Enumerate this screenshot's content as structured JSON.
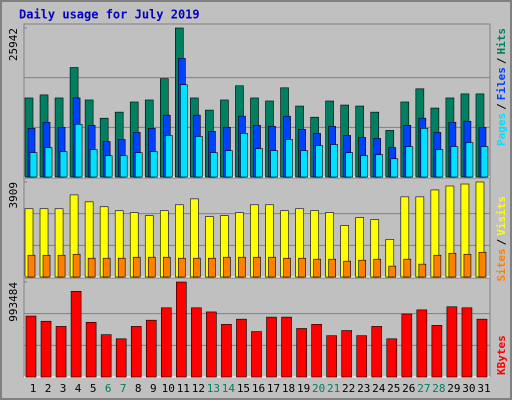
{
  "chart_data": [
    {
      "type": "bar",
      "title": "Daily usage for July 2019",
      "ylim": [
        0,
        25942
      ],
      "yticks": [
        25942
      ],
      "grid_divisions": 3,
      "series": [
        {
          "name": "Hits",
          "color": "#008060",
          "values": [
            13765,
            14294,
            13765,
            19060,
            13412,
            10236,
            11294,
            13059,
            13412,
            17118,
            25942,
            13765,
            11647,
            13412,
            15882,
            13765,
            13235,
            15530,
            12353,
            10412,
            13235,
            12530,
            12353,
            11294,
            8118,
            13059,
            15353,
            12000,
            13765,
            14471,
            14471
          ]
        },
        {
          "name": "Files",
          "color": "#0040ff",
          "values": [
            8472,
            9531,
            8649,
            13767,
            9002,
            6178,
            6531,
            7766,
            8472,
            10767,
            20651,
            10767,
            7943,
            8649,
            10590,
            9002,
            8825,
            10590,
            8296,
            7590,
            8825,
            7237,
            6884,
            6707,
            5119,
            9002,
            10237,
            7766,
            9531,
            9708,
            8649
          ]
        },
        {
          "name": "Pages",
          "color": "#00e0ff",
          "values": [
            4236,
            5119,
            4413,
            9178,
            4766,
            3707,
            3707,
            4236,
            4413,
            7237,
            16062,
            7060,
            4236,
            4589,
            7590,
            4942,
            4589,
            6531,
            4589,
            5472,
            5648,
            4236,
            3707,
            3883,
            3177,
            5295,
            8472,
            4766,
            5295,
            6001,
            5295
          ]
        }
      ],
      "legend_separator": "/"
    },
    {
      "type": "bar",
      "ylim": [
        0,
        3909
      ],
      "yticks": [
        3909
      ],
      "grid_divisions": 3,
      "series": [
        {
          "name": "Visits",
          "color": "#ffff00",
          "values": [
            2808,
            2808,
            2808,
            3378,
            3093,
            2890,
            2727,
            2646,
            2523,
            2727,
            2971,
            3215,
            2483,
            2523,
            2646,
            2971,
            2971,
            2727,
            2808,
            2727,
            2646,
            2116,
            2442,
            2361,
            1547,
            3297,
            3297,
            3582,
            3744,
            3826,
            3909
          ]
        },
        {
          "name": "Sites",
          "color": "#ff8000",
          "values": [
            895,
            895,
            895,
            936,
            773,
            773,
            773,
            814,
            814,
            814,
            773,
            773,
            773,
            814,
            814,
            814,
            814,
            773,
            773,
            733,
            733,
            651,
            692,
            733,
            448,
            733,
            529,
            895,
            977,
            936,
            1018
          ]
        }
      ],
      "legend_separator": "/"
    },
    {
      "type": "bar",
      "ylim": [
        0,
        993484
      ],
      "yticks": [
        993484
      ],
      "grid_divisions": 3,
      "categories": [
        "1",
        "2",
        "3",
        "4",
        "5",
        "6",
        "7",
        "8",
        "9",
        "10",
        "11",
        "12",
        "13",
        "14",
        "15",
        "16",
        "17",
        "18",
        "19",
        "20",
        "21",
        "22",
        "23",
        "24",
        "25",
        "26",
        "27",
        "28",
        "29",
        "30",
        "31"
      ],
      "category_colors": [
        "#000000",
        "#000000",
        "#000000",
        "#000000",
        "#000000",
        "#008060",
        "#008060",
        "#000000",
        "#000000",
        "#000000",
        "#000000",
        "#000000",
        "#008060",
        "#008060",
        "#000000",
        "#000000",
        "#000000",
        "#000000",
        "#000000",
        "#008060",
        "#008060",
        "#000000",
        "#000000",
        "#000000",
        "#000000",
        "#000000",
        "#008060",
        "#008060",
        "#000000",
        "#000000",
        "#000000"
      ],
      "series": [
        {
          "name": "KBytes",
          "color": "#ff0000",
          "values": [
            637200,
            583200,
            529200,
            896400,
            572400,
            442800,
            399600,
            529200,
            594000,
            723600,
            993484,
            723600,
            680400,
            550800,
            604800,
            475200,
            626400,
            626400,
            507600,
            550800,
            432000,
            486000,
            432000,
            529200,
            399600,
            658800,
            702000,
            540000,
            734400,
            723600,
            604800
          ]
        }
      ]
    }
  ]
}
